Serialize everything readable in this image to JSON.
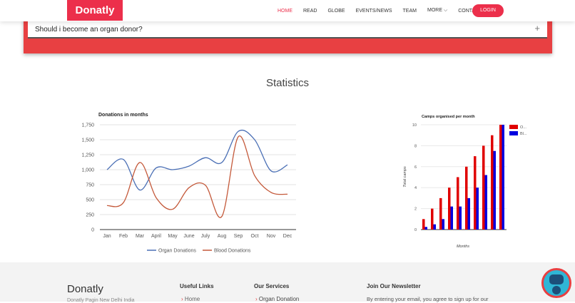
{
  "nav": {
    "logo": "Donatly",
    "items": [
      "HOME",
      "READ",
      "GLOBE",
      "EVENTS/NEWS",
      "TEAM",
      "MORE ⌵",
      "CONTACT"
    ],
    "login": "LOGIN"
  },
  "faq": {
    "question": "Should i become an organ donor?",
    "toggle": "+"
  },
  "section_title": "Statistics",
  "chart_data": [
    {
      "type": "line",
      "title": "Donations in months",
      "categories": [
        "Jan",
        "Feb",
        "Mar",
        "April",
        "May",
        "June",
        "July",
        "Aug",
        "Sep",
        "Oct",
        "Nov",
        "Dec"
      ],
      "ylim": [
        0,
        1750
      ],
      "yticks": [
        "0",
        "250",
        "500",
        "750",
        "1,000",
        "1,250",
        "1,500",
        "1,750"
      ],
      "grid": true,
      "legend": "bottom",
      "series": [
        {
          "name": "Organ Donations",
          "color": "#4a6fb5",
          "values": [
            1000,
            1170,
            660,
            1030,
            1000,
            1060,
            1200,
            1120,
            1640,
            1500,
            980,
            1080
          ]
        },
        {
          "name": "Blood Donations",
          "color": "#c4593a",
          "values": [
            400,
            450,
            1120,
            530,
            340,
            700,
            740,
            220,
            1550,
            900,
            620,
            590
          ]
        }
      ]
    },
    {
      "type": "bar",
      "title": "Camps organised per month",
      "xlabel": "Months",
      "ylabel": "Total camps",
      "ylim": [
        0,
        10
      ],
      "yticks": [
        "0",
        "2",
        "4",
        "6",
        "8",
        "10"
      ],
      "legend": "right",
      "series": [
        {
          "name": "O...",
          "color": "#e00000",
          "values": [
            1,
            2,
            3,
            4,
            5,
            6,
            7,
            8,
            9,
            10
          ]
        },
        {
          "name": "Bl...",
          "color": "#0000e0",
          "values": [
            0.25,
            0.5,
            1,
            2.2,
            2.2,
            3,
            4,
            5.2,
            7.5,
            10
          ]
        }
      ]
    }
  ],
  "footer": {
    "brand": "Donatly",
    "address": "Donatly Pagin New Delhi India",
    "useful_links": "Useful Links",
    "link_home": "Home",
    "services": "Our Services",
    "service_organ": "Organ Donation",
    "newsletter": "Join Our Newsletter",
    "newsletter_text": "By entering your email, you agree to sign up for our"
  }
}
